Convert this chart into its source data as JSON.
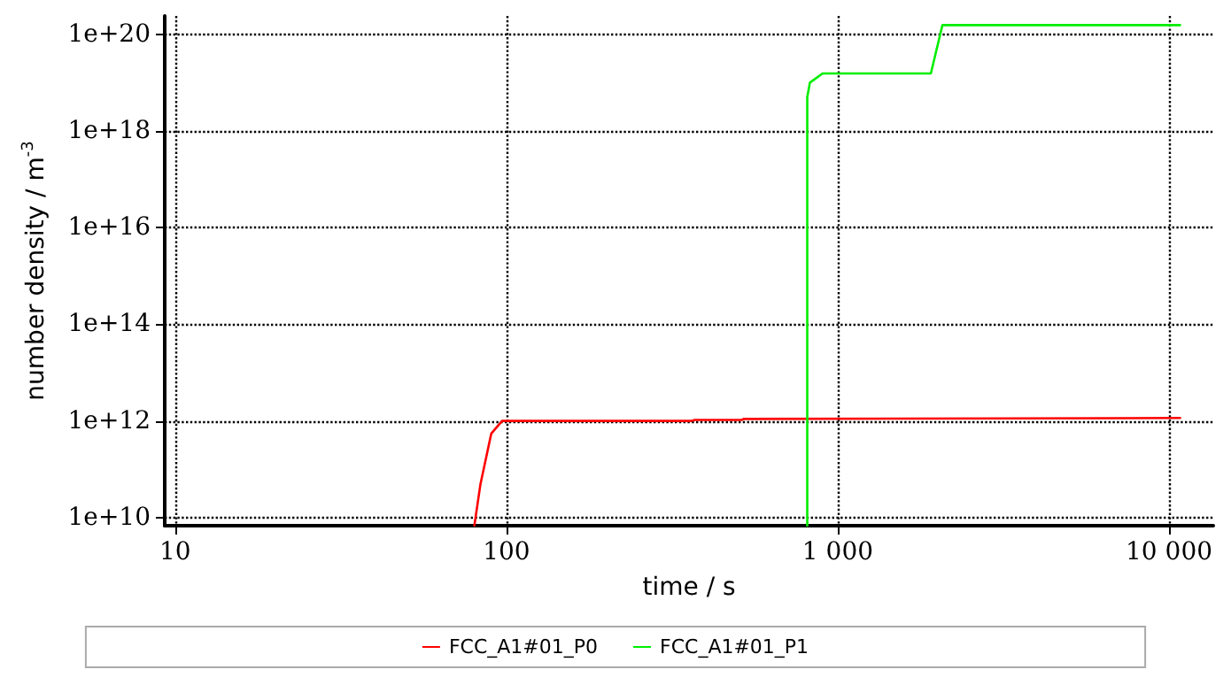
{
  "chart_data": {
    "type": "line",
    "xlabel": "time / s",
    "ylabel": "number density / m$^{-3}$",
    "log": "xy",
    "grid": true,
    "legend": "bottom",
    "marker": "none",
    "line_style": "solid",
    "xlim": [
      9.3,
      13600
    ],
    "ylim": [
      6800000000.0,
      2.4e+20
    ],
    "xticks": [
      10,
      100,
      {
        "value": 1000,
        "label": "1 000"
      },
      {
        "value": 10000,
        "label": "10 000"
      }
    ],
    "yticks": [
      {
        "value": 10000000000.0,
        "label": "1e+10"
      },
      {
        "value": 1000000000000.0,
        "label": "1e+12"
      },
      {
        "value": 100000000000000.0,
        "label": "1e+14"
      },
      {
        "value": 1e+16,
        "label": "1e+16"
      },
      {
        "value": 1e+18,
        "label": "1e+18"
      },
      {
        "value": 1e+20,
        "label": "1e+20"
      }
    ],
    "series": [
      {
        "name": "FCC_A1#01_P0",
        "color": "#ff0000",
        "x": [
          80,
          83.5,
          90,
          97,
          362,
          370,
          513,
          520,
          10800
        ],
        "values": [
          6800000000.0,
          50000000000.0,
          550000000000.0,
          1000000000000.0,
          1000000000000.0,
          1050000000000.0,
          1050000000000.0,
          1100000000000.0,
          1150000000000.0
        ]
      },
      {
        "name": "FCC_A1#01_P1",
        "color": "#00ee00",
        "x": [
          809,
          809,
          824,
          900,
          1910,
          2070,
          10800
        ],
        "values": [
          6800000000.0,
          5e+18,
          1e+19,
          1.55e+19,
          1.55e+19,
          1.55e+20,
          1.55e+20
        ]
      }
    ]
  }
}
